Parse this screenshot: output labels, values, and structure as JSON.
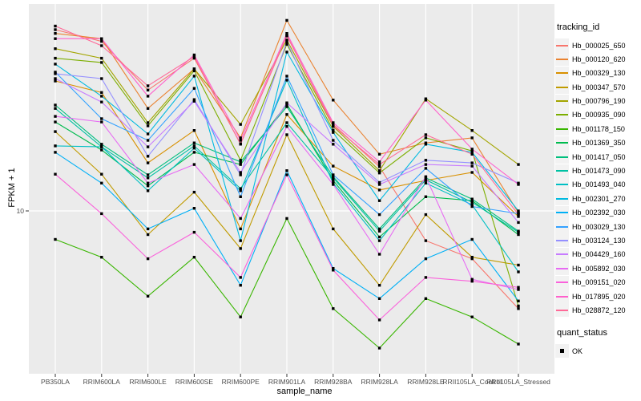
{
  "legend": {
    "tracking_title": "tracking_id",
    "quant_title": "quant_status",
    "quant_label": "OK",
    "quant_marker_color": "#000000"
  },
  "chart_data": {
    "type": "line",
    "title": "",
    "xlabel": "sample_name",
    "ylabel": "FPKM + 1",
    "y_scale": "log10",
    "y_ticks": [
      10
    ],
    "y_range_approx": [
      1.7,
      98
    ],
    "grid": true,
    "legend_position": "right",
    "panel_bg": "#EBEBEB",
    "gridline_color": "#FFFFFF",
    "tick_color": "#333333",
    "tick_label_color": "#4D4D4D",
    "point_marker": {
      "shape": "square",
      "color": "#000000",
      "status": "OK"
    },
    "categories": [
      "PB350LA",
      "RRIM600LA",
      "RRIM600LE",
      "RRIM600SE",
      "RRIM600PE",
      "RRIM901LA",
      "RRIM928BA",
      "RRIM928LA",
      "RRIM928LE",
      "RRII105LA_Control",
      "RRII105LA_Stressed"
    ],
    "series": [
      {
        "name": "Hb_000025_650",
        "color": "#F8766D",
        "values": [
          74,
          65,
          38,
          54,
          21,
          69,
          26,
          16.3,
          7.2,
          5.9,
          3.4
        ]
      },
      {
        "name": "Hb_000120_620",
        "color": "#EA8331",
        "values": [
          71,
          67,
          31,
          48,
          22.4,
          82,
          34,
          18.7,
          21.2,
          22.4,
          9.8
        ]
      },
      {
        "name": "Hb_000329_130",
        "color": "#D89000",
        "values": [
          42,
          37,
          17,
          24.3,
          8.2,
          29,
          16.4,
          12.6,
          14,
          15.3,
          9.4
        ]
      },
      {
        "name": "Hb_000347_570",
        "color": "#C09B00",
        "values": [
          24,
          15,
          7.7,
          12.3,
          6.6,
          23.2,
          8.2,
          4.4,
          9.6,
          6,
          5.5
        ]
      },
      {
        "name": "Hb_000796_190",
        "color": "#A3A500",
        "values": [
          60,
          54,
          26.5,
          48,
          26,
          66,
          25.4,
          15.6,
          34.5,
          24.3,
          16.7
        ]
      },
      {
        "name": "Hb_000935_090",
        "color": "#7CAE00",
        "values": [
          54,
          51.5,
          25.6,
          47,
          17.5,
          63,
          24.4,
          15.2,
          22.4,
          19.4,
          3.5
        ]
      },
      {
        "name": "Hb_001178_150",
        "color": "#39B600",
        "values": [
          7.3,
          6,
          3.9,
          6,
          3.1,
          9.2,
          3.4,
          2.2,
          3.8,
          3.1,
          2.3
        ]
      },
      {
        "name": "Hb_001369_350",
        "color": "#00BB4E",
        "values": [
          26.7,
          19.6,
          13.2,
          19.1,
          16.7,
          32.5,
          14,
          7.5,
          11.7,
          11.2,
          7.7
        ]
      },
      {
        "name": "Hb_001417_050",
        "color": "#00BF7D",
        "values": [
          32.2,
          20.9,
          14.9,
          21.2,
          17.2,
          31.6,
          14.6,
          8.2,
          14.4,
          11.4,
          8
        ]
      },
      {
        "name": "Hb_001473_090",
        "color": "#00C1A3",
        "values": [
          31,
          20.3,
          14.4,
          20.5,
          12.8,
          26.5,
          14.4,
          8,
          14.1,
          11,
          7.9
        ]
      },
      {
        "name": "Hb_001493_040",
        "color": "#00BFC4",
        "values": [
          20.5,
          20.3,
          12.5,
          20,
          12.5,
          42.4,
          13.6,
          7.2,
          13.6,
          10.7,
          5.1
        ]
      },
      {
        "name": "Hb_002301_270",
        "color": "#00BAE0",
        "values": [
          50.6,
          35.5,
          23.4,
          44.3,
          7.2,
          57.8,
          23.8,
          11.2,
          20.9,
          19.1,
          10
        ]
      },
      {
        "name": "Hb_002392_030",
        "color": "#00B0F6",
        "values": [
          19.1,
          13.6,
          8.2,
          10.3,
          4.4,
          15.6,
          5.3,
          3.8,
          5.9,
          7.3,
          3.7
        ]
      },
      {
        "name": "Hb_003029_130",
        "color": "#35A2FF",
        "values": [
          46.3,
          27.7,
          21.8,
          38.7,
          11.7,
          44.3,
          14.9,
          9.6,
          16,
          10.5,
          9.7
        ]
      },
      {
        "name": "Hb_003124_130",
        "color": "#9590FF",
        "values": [
          45.5,
          43.1,
          18.3,
          34.2,
          14.9,
          64.8,
          21.8,
          13.7,
          17.5,
          17,
          13.6
        ]
      },
      {
        "name": "Hb_004429_160",
        "color": "#C77CFF",
        "values": [
          43.1,
          33.3,
          20.3,
          33.6,
          15.3,
          33,
          20.9,
          13.4,
          16.7,
          16.4,
          8.8
        ]
      },
      {
        "name": "Hb_005892_030",
        "color": "#E76BF3",
        "values": [
          28.4,
          26.7,
          13.6,
          16.7,
          9.2,
          25.4,
          13.4,
          6.2,
          14.6,
          4.7,
          4.2
        ]
      },
      {
        "name": "Hb_009151_020",
        "color": "#FA62DB",
        "values": [
          15,
          9.7,
          5.9,
          7.9,
          4.8,
          14.9,
          5.2,
          3,
          4.8,
          4.6,
          4.3
        ]
      },
      {
        "name": "Hb_017895_020",
        "color": "#FF61CC",
        "values": [
          67,
          67,
          35.5,
          56,
          21.8,
          71,
          26.5,
          17.2,
          34,
          19.8,
          13.4
        ]
      },
      {
        "name": "Hb_028872_120",
        "color": "#FF6A98",
        "values": [
          77,
          62,
          39.8,
          55,
          20.9,
          69.5,
          25.6,
          16.7,
          23.2,
          18.7,
          9.6
        ]
      }
    ]
  }
}
